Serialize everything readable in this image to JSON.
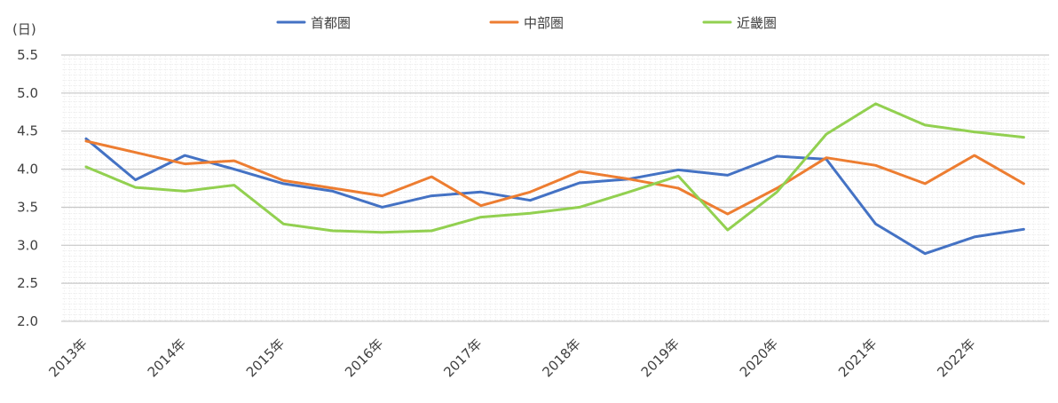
{
  "chart_data": {
    "type": "line",
    "title": "",
    "xlabel": "",
    "ylabel": "(日)",
    "ylim": [
      2.0,
      5.5
    ],
    "y_ticks": [
      "5.5",
      "5.0",
      "4.5",
      "4.0",
      "3.5",
      "3.0",
      "2.5",
      "2.0"
    ],
    "y_tick_values": [
      5.5,
      5.0,
      4.5,
      4.0,
      3.5,
      3.0,
      2.5,
      2.0
    ],
    "x_tick_labels": [
      "2013年",
      "2014年",
      "2015年",
      "2016年",
      "2017年",
      "2018年",
      "2019年",
      "2020年",
      "2021年",
      "2022年"
    ],
    "x_tick_positions": [
      0,
      2,
      4,
      6,
      8,
      10,
      12,
      14,
      16,
      18
    ],
    "point_count": 20,
    "grid": true,
    "legend_position": "top",
    "series": [
      {
        "name": "首都圏",
        "color": "#4472C4",
        "values": [
          4.4,
          3.86,
          4.18,
          4.0,
          3.81,
          3.71,
          3.5,
          3.65,
          3.7,
          3.59,
          3.82,
          3.87,
          3.99,
          3.92,
          4.17,
          4.13,
          3.28,
          2.89,
          3.11,
          3.21
        ]
      },
      {
        "name": "中部圏",
        "color": "#ED7D31",
        "values": [
          4.37,
          4.22,
          4.07,
          4.11,
          3.85,
          3.75,
          3.65,
          3.9,
          3.52,
          3.7,
          3.97,
          3.87,
          3.75,
          3.41,
          3.75,
          4.15,
          4.05,
          3.81,
          4.18,
          3.81
        ]
      },
      {
        "name": "近畿圏",
        "color": "#92D050",
        "values": [
          4.03,
          3.76,
          3.71,
          3.79,
          3.28,
          3.19,
          3.17,
          3.19,
          3.37,
          3.42,
          3.5,
          3.7,
          3.91,
          3.2,
          3.7,
          4.46,
          4.86,
          4.58,
          4.49,
          4.42
        ]
      }
    ]
  }
}
